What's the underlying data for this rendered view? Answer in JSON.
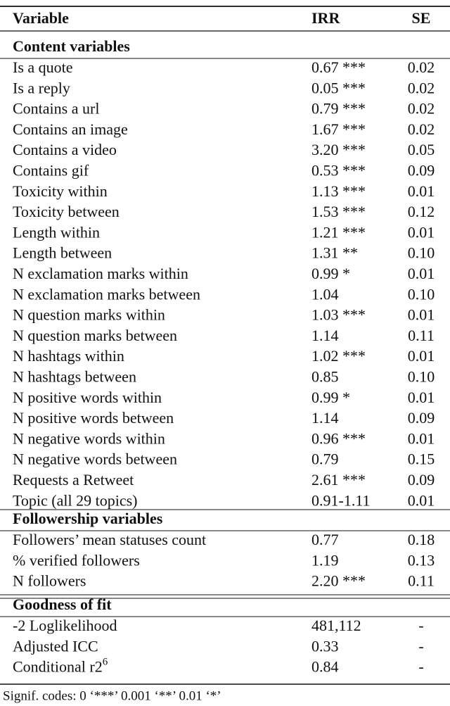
{
  "table": {
    "header": [
      "Variable",
      "IRR",
      "SE"
    ],
    "sections": [
      {
        "title": "Content variables",
        "rows": [
          [
            "Is a quote",
            "0.67 ***",
            "0.02"
          ],
          [
            "Is a reply",
            "0.05 ***",
            "0.02"
          ],
          [
            "Contains a url",
            "0.79 ***",
            "0.02"
          ],
          [
            "Contains an image",
            "1.67 ***",
            "0.02"
          ],
          [
            "Contains a video",
            "3.20 ***",
            "0.05"
          ],
          [
            "Contains gif",
            "0.53 ***",
            "0.09"
          ],
          [
            "Toxicity within",
            "1.13 ***",
            "0.01"
          ],
          [
            "Toxicity between",
            "1.53 ***",
            "0.12"
          ],
          [
            "Length within",
            "1.21 ***",
            "0.01"
          ],
          [
            "Length between",
            "1.31 **",
            "0.10"
          ],
          [
            "N exclamation marks within",
            "0.99 *",
            "0.01"
          ],
          [
            "N exclamation marks between",
            "1.04",
            "0.10"
          ],
          [
            "N question marks within",
            "1.03 ***",
            "0.01"
          ],
          [
            "N question marks between",
            "1.14",
            "0.11"
          ],
          [
            "N hashtags within",
            "1.02 ***",
            "0.01"
          ],
          [
            "N hashtags between",
            "0.85",
            "0.10"
          ],
          [
            "N positive words within",
            "0.99 *",
            "0.01"
          ],
          [
            "N positive words between",
            "1.14",
            "0.09"
          ],
          [
            "N negative words within",
            "0.96 ***",
            "0.01"
          ],
          [
            "N negative words between",
            "0.79",
            "0.15"
          ],
          [
            "Requests a Retweet",
            "2.61 ***",
            "0.09"
          ],
          [
            "Topic (all 29 topics)",
            "0.91-1.11",
            "0.01"
          ]
        ]
      },
      {
        "title": "Followership variables",
        "rows": [
          [
            "Followers’ mean statuses count",
            "0.77",
            "0.18"
          ],
          [
            "% verified followers",
            "1.19",
            "0.13"
          ],
          [
            "N followers",
            "2.20 ***",
            "0.11"
          ]
        ]
      },
      {
        "title": "Goodness of fit",
        "rows": [
          [
            "-2 Loglikelihood",
            "481,112",
            "-"
          ],
          [
            "Adjusted ICC",
            "0.33",
            "-"
          ],
          [
            {
              "text": "Conditional r2",
              "sup": "6"
            },
            "0.84",
            "-"
          ]
        ]
      }
    ],
    "footnote": "Signif. codes: 0 ‘***’ 0.001 ‘**’ 0.01 ‘*’"
  }
}
